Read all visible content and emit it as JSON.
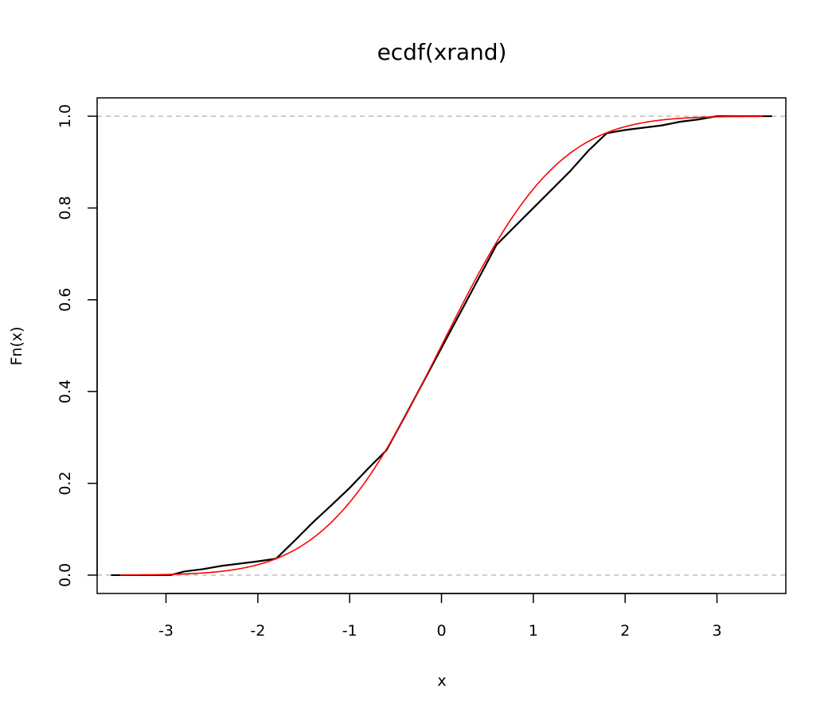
{
  "chart_data": {
    "type": "line",
    "title": "ecdf(xrand)",
    "xlabel": "x",
    "ylabel": "Fn(x)",
    "xlim": [
      -3.75,
      3.75
    ],
    "ylim": [
      -0.04,
      1.04
    ],
    "x_ticks": [
      "-3",
      "-2",
      "-1",
      "0",
      "1",
      "2",
      "3"
    ],
    "y_ticks": [
      "0.0",
      "0.2",
      "0.4",
      "0.6",
      "0.8",
      "1.0"
    ],
    "reference_lines": [
      0,
      1
    ],
    "series": [
      {
        "color": "#000000",
        "points": [
          [
            -3.6,
            0.0
          ],
          [
            -2.95,
            0.0
          ],
          [
            -2.8,
            0.008
          ],
          [
            -2.6,
            0.013
          ],
          [
            -2.4,
            0.02
          ],
          [
            -2.2,
            0.025
          ],
          [
            -2.0,
            0.03
          ],
          [
            -1.8,
            0.036
          ],
          [
            -1.6,
            0.075
          ],
          [
            -1.4,
            0.115
          ],
          [
            -1.2,
            0.152
          ],
          [
            -1.0,
            0.19
          ],
          [
            -0.8,
            0.232
          ],
          [
            -0.6,
            0.272
          ],
          [
            -0.4,
            0.345
          ],
          [
            -0.2,
            0.42
          ],
          [
            0.0,
            0.495
          ],
          [
            0.2,
            0.57
          ],
          [
            0.4,
            0.645
          ],
          [
            0.6,
            0.72
          ],
          [
            0.8,
            0.76
          ],
          [
            1.0,
            0.8
          ],
          [
            1.2,
            0.84
          ],
          [
            1.4,
            0.88
          ],
          [
            1.6,
            0.925
          ],
          [
            1.8,
            0.963
          ],
          [
            2.0,
            0.97
          ],
          [
            2.2,
            0.975
          ],
          [
            2.4,
            0.98
          ],
          [
            2.6,
            0.988
          ],
          [
            2.8,
            0.993
          ],
          [
            3.0,
            1.0
          ],
          [
            3.6,
            1.0
          ]
        ]
      },
      {
        "color": "#ff0000",
        "function": "normal_cdf",
        "x_range": [
          -3.5,
          3.5
        ]
      }
    ],
    "reference_line_color": "#bebebe"
  }
}
